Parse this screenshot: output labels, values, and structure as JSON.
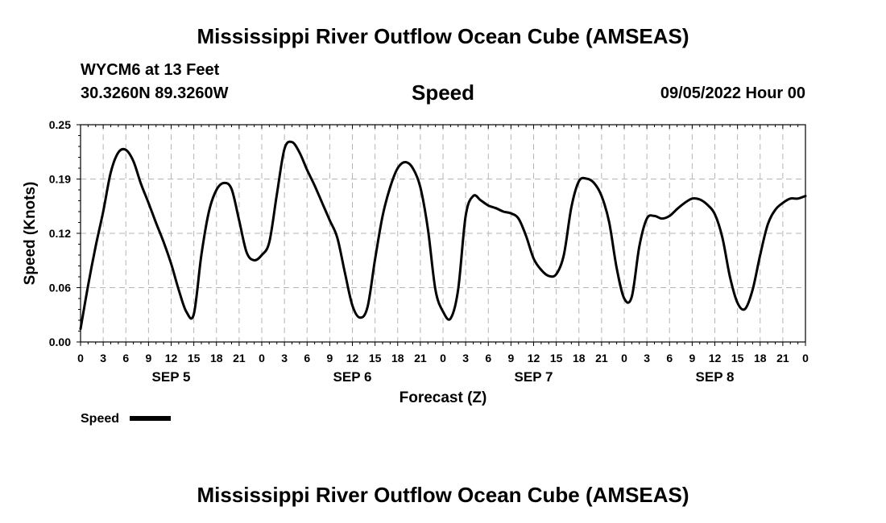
{
  "header": {
    "title": "Mississippi River Outflow Ocean Cube (AMSEAS)",
    "station": "WYCM6 at 13 Feet",
    "coordinates": "30.3260N  89.3260W",
    "plot_title": "Speed",
    "datetime": "09/05/2022 Hour 00"
  },
  "footer": {
    "title": "Mississippi River Outflow Ocean Cube (AMSEAS)"
  },
  "chart_data": {
    "type": "line",
    "title": "Speed",
    "xlabel": "Forecast (Z)",
    "ylabel": "Speed (Knots)",
    "ylim": [
      0,
      0.25
    ],
    "xlim": [
      0,
      96
    ],
    "yticks": [
      "0.00",
      "0.06",
      "0.12",
      "0.19",
      "0.25"
    ],
    "xtick_labels": [
      "0",
      "3",
      "6",
      "9",
      "12",
      "15",
      "18",
      "21",
      "0",
      "3",
      "6",
      "9",
      "12",
      "15",
      "18",
      "21",
      "0",
      "3",
      "6",
      "9",
      "12",
      "15",
      "18",
      "21",
      "0",
      "3",
      "6",
      "9",
      "12",
      "15",
      "18",
      "21",
      "0"
    ],
    "day_labels": [
      "SEP 5",
      "SEP 6",
      "SEP 7",
      "SEP 8"
    ],
    "grid": true,
    "legend": {
      "label": "Speed",
      "placement": "bottom-left"
    },
    "series": [
      {
        "name": "Speed",
        "color": "#000000",
        "x": [
          0,
          1,
          2,
          3,
          4,
          5,
          6,
          7,
          8,
          9,
          10,
          11,
          12,
          13,
          14,
          15,
          16,
          17,
          18,
          19,
          20,
          21,
          22,
          23,
          24,
          25,
          26,
          27,
          28,
          29,
          30,
          31,
          32,
          33,
          34,
          35,
          36,
          37,
          38,
          39,
          40,
          41,
          42,
          43,
          44,
          45,
          46,
          47,
          48,
          49,
          50,
          51,
          52,
          53,
          54,
          55,
          56,
          57,
          58,
          59,
          60,
          61,
          62,
          63,
          64,
          65,
          66,
          67,
          68,
          69,
          70,
          71,
          72,
          73,
          74,
          75,
          76,
          77,
          78,
          79,
          80,
          81,
          82,
          83,
          84,
          85,
          86,
          87,
          88,
          89,
          90,
          91,
          92,
          93,
          94,
          95,
          96
        ],
        "y": [
          0.015,
          0.065,
          0.11,
          0.15,
          0.195,
          0.218,
          0.221,
          0.208,
          0.182,
          0.16,
          0.137,
          0.115,
          0.09,
          0.06,
          0.035,
          0.032,
          0.1,
          0.15,
          0.175,
          0.183,
          0.176,
          0.14,
          0.103,
          0.094,
          0.1,
          0.115,
          0.17,
          0.222,
          0.23,
          0.218,
          0.198,
          0.18,
          0.16,
          0.14,
          0.12,
          0.08,
          0.042,
          0.028,
          0.04,
          0.095,
          0.145,
          0.178,
          0.2,
          0.207,
          0.2,
          0.178,
          0.13,
          0.06,
          0.035,
          0.027,
          0.06,
          0.145,
          0.168,
          0.163,
          0.157,
          0.154,
          0.15,
          0.148,
          0.142,
          0.122,
          0.096,
          0.083,
          0.076,
          0.078,
          0.1,
          0.155,
          0.185,
          0.188,
          0.183,
          0.168,
          0.138,
          0.085,
          0.05,
          0.052,
          0.11,
          0.142,
          0.145,
          0.142,
          0.145,
          0.153,
          0.16,
          0.165,
          0.164,
          0.158,
          0.147,
          0.12,
          0.075,
          0.045,
          0.038,
          0.06,
          0.1,
          0.135,
          0.152,
          0.16,
          0.165,
          0.165,
          0.168
        ]
      }
    ]
  }
}
